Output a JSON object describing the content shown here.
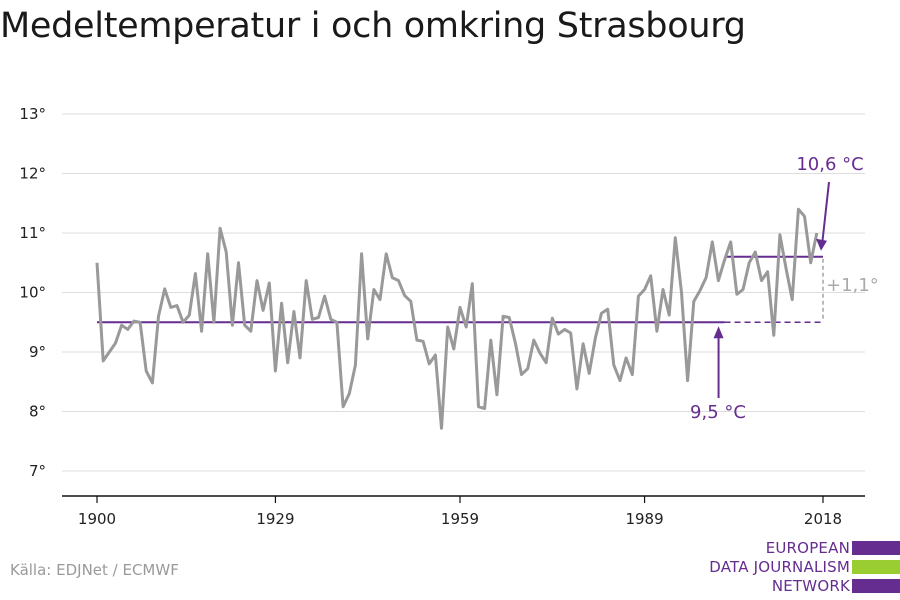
{
  "title": "Medeltemperatur i och omkring Strasbourg",
  "source": "Källa: EDJNet / ECMWF",
  "logo": {
    "lines": [
      "EUROPEAN",
      "DATA JOURNALISM",
      "NETWORK"
    ],
    "colors": [
      "#662d91",
      "#9acd32",
      "#662d91"
    ]
  },
  "chart_data": {
    "type": "line",
    "title": "Medeltemperatur i och omkring Strasbourg",
    "ylim": [
      7,
      13
    ],
    "xlim": [
      1900,
      2018
    ],
    "y_ticks": [
      7,
      8,
      9,
      10,
      11,
      12,
      13
    ],
    "y_tick_labels": [
      "7°",
      "8°",
      "9°",
      "10°",
      "11°",
      "12°",
      "13°"
    ],
    "x_ticks": [
      1900,
      1929,
      1959,
      1989,
      2018
    ],
    "x_tick_labels": [
      "1900",
      "1929",
      "1959",
      "1989",
      "2018"
    ],
    "grid": "horizontal",
    "series": [
      {
        "color": "#999999",
        "x": [
          1900,
          1901,
          1902,
          1903,
          1904,
          1905,
          1906,
          1907,
          1908,
          1909,
          1910,
          1911,
          1912,
          1913,
          1914,
          1915,
          1916,
          1917,
          1918,
          1919,
          1920,
          1921,
          1922,
          1923,
          1924,
          1925,
          1926,
          1927,
          1928,
          1929,
          1930,
          1931,
          1932,
          1933,
          1934,
          1935,
          1936,
          1937,
          1938,
          1939,
          1940,
          1941,
          1942,
          1943,
          1944,
          1945,
          1946,
          1947,
          1948,
          1949,
          1950,
          1951,
          1952,
          1953,
          1954,
          1955,
          1956,
          1957,
          1958,
          1959,
          1960,
          1961,
          1962,
          1963,
          1964,
          1965,
          1966,
          1967,
          1968,
          1969,
          1970,
          1971,
          1972,
          1973,
          1974,
          1975,
          1976,
          1977,
          1978,
          1979,
          1980,
          1981,
          1982,
          1983,
          1984,
          1985,
          1986,
          1987,
          1988,
          1989,
          1990,
          1991,
          1992,
          1993,
          1994,
          1995,
          1996,
          1997,
          1998,
          1999,
          2000,
          2001,
          2002,
          2003,
          2004,
          2005,
          2006,
          2007,
          2008,
          2009,
          2010,
          2011,
          2012,
          2013,
          2014,
          2015,
          2016,
          2017
        ],
        "values": [
          10.5,
          8.85,
          9.0,
          9.15,
          9.45,
          9.38,
          9.52,
          9.5,
          8.68,
          8.48,
          9.6,
          10.06,
          9.75,
          9.78,
          9.5,
          9.62,
          10.32,
          9.35,
          10.65,
          9.5,
          11.08,
          10.68,
          9.45,
          10.5,
          9.45,
          9.35,
          10.2,
          9.7,
          10.16,
          8.68,
          9.82,
          8.82,
          9.68,
          8.9,
          10.2,
          9.55,
          9.58,
          9.94,
          9.55,
          9.5,
          8.08,
          8.3,
          8.78,
          10.65,
          9.22,
          10.05,
          9.88,
          10.65,
          10.25,
          10.2,
          9.95,
          9.85,
          9.2,
          9.18,
          8.8,
          8.95,
          7.72,
          9.42,
          9.05,
          9.75,
          9.42,
          10.15,
          8.08,
          8.05,
          9.2,
          8.28,
          9.6,
          9.58,
          9.15,
          8.62,
          8.72,
          9.2,
          8.98,
          8.82,
          9.57,
          9.3,
          9.38,
          9.32,
          8.38,
          9.14,
          8.64,
          9.24,
          9.65,
          9.72,
          8.78,
          8.52,
          8.9,
          8.62,
          9.94,
          10.05,
          10.28,
          9.35,
          10.05,
          9.62,
          10.92,
          10.0,
          8.52,
          9.85,
          10.03,
          10.25,
          10.85,
          10.2,
          10.55,
          10.85,
          9.97,
          10.05,
          10.5,
          10.68,
          10.2,
          10.35,
          9.28,
          10.97,
          10.4,
          9.88,
          11.4,
          11.28,
          10.5,
          11.0
        ]
      }
    ],
    "reference_lines": [
      {
        "value": 9.5,
        "x_from": 1900,
        "x_to": 2002,
        "dashed_to": 2018,
        "label": "9,5 °C",
        "color": "#662d91"
      },
      {
        "value": 10.6,
        "x_from": 2002,
        "x_to": 2018,
        "label": "10,6 °C",
        "color": "#662d91"
      }
    ],
    "difference_label": "+1,1°"
  }
}
